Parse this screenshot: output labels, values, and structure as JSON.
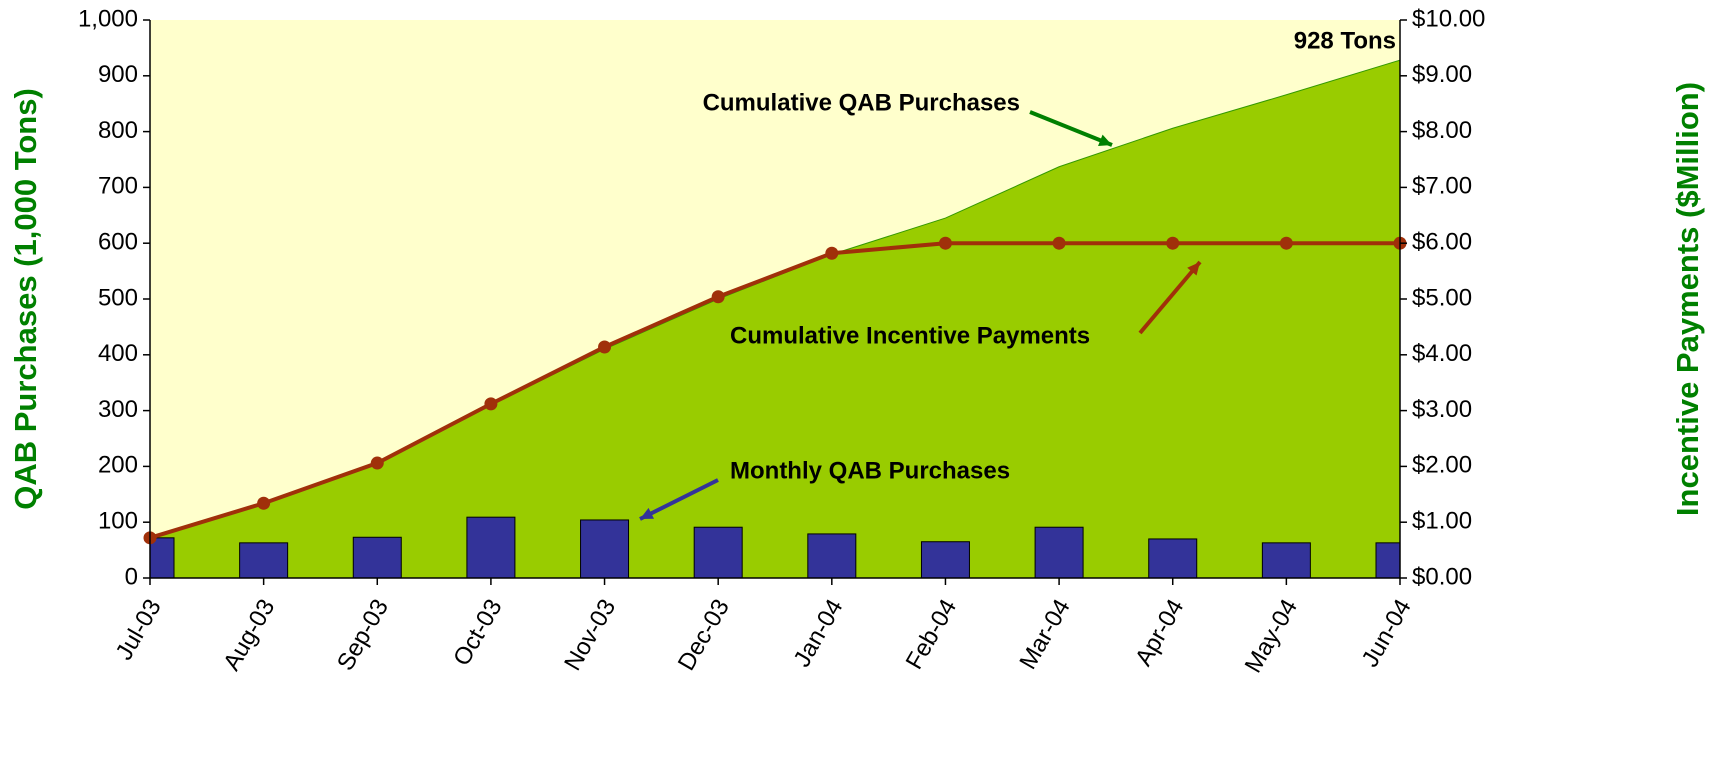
{
  "chart_data": {
    "type": "combo",
    "categories": [
      "Jul-03",
      "Aug-03",
      "Sep-03",
      "Oct-03",
      "Nov-03",
      "Dec-03",
      "Jan-04",
      "Feb-04",
      "Mar-04",
      "Apr-04",
      "May-04",
      "Jun-04"
    ],
    "series": [
      {
        "name": "Cumulative QAB Purchases",
        "type": "area",
        "color": "#99cc00",
        "values": [
          72,
          135,
          205,
          310,
          410,
          500,
          580,
          645,
          737,
          806,
          866,
          928
        ]
      },
      {
        "name": "Monthly QAB Purchases",
        "type": "bar",
        "color": "#333399",
        "values": [
          72,
          63,
          73,
          109,
          104,
          91,
          79,
          65,
          91,
          70,
          63,
          63
        ]
      },
      {
        "name": "Cumulative Incentive Payments",
        "type": "line",
        "color": "#a0300a",
        "axis": "y2",
        "values": [
          0.72,
          1.34,
          2.06,
          3.12,
          4.14,
          5.04,
          5.82,
          6.0,
          6.0,
          6.0,
          6.0,
          6.0
        ]
      }
    ],
    "annotations": [
      "928 Tons"
    ],
    "ylabel": "QAB Purchases (1,000 Tons)",
    "y2label": "Incentive Payments ($Million)",
    "ylim": [
      0,
      1000
    ],
    "yticks": [
      0,
      100,
      200,
      300,
      400,
      500,
      600,
      700,
      800,
      900,
      {
        "value": 1000,
        "label": "1,000"
      }
    ],
    "y2lim": [
      0,
      10
    ],
    "y2ticks": [
      {
        "value": 0,
        "label": "$0.00"
      },
      {
        "value": 1,
        "label": "$1.00"
      },
      {
        "value": 2,
        "label": "$2.00"
      },
      {
        "value": 3,
        "label": "$3.00"
      },
      {
        "value": 4,
        "label": "$4.00"
      },
      {
        "value": 5,
        "label": "$5.00"
      },
      {
        "value": 6,
        "label": "$6.00"
      },
      {
        "value": 7,
        "label": "$7.00"
      },
      {
        "value": 8,
        "label": "$8.00"
      },
      {
        "value": 9,
        "label": "$9.00"
      },
      {
        "value": 10,
        "label": "$10.00"
      }
    ],
    "background": "#ffffcc",
    "grid": false
  }
}
